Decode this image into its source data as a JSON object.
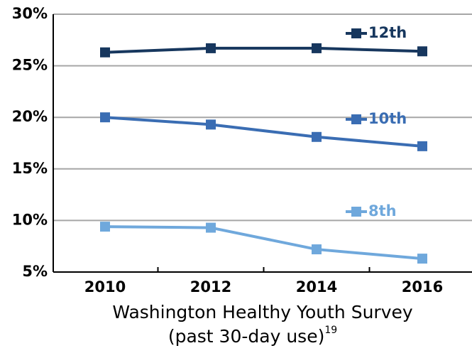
{
  "chart_data": {
    "type": "line",
    "categories": [
      "2010",
      "2012",
      "2014",
      "2016"
    ],
    "series": [
      {
        "name": "12th",
        "color": "#17375e",
        "values": [
          26.3,
          26.7,
          26.7,
          26.4
        ]
      },
      {
        "name": "10th",
        "color": "#3a6db3",
        "values": [
          20.0,
          19.3,
          18.1,
          17.2
        ]
      },
      {
        "name": "8th",
        "color": "#6fa8dc",
        "values": [
          9.4,
          9.3,
          7.2,
          6.3
        ]
      }
    ],
    "ylim": [
      5,
      30
    ],
    "yticks": [
      {
        "value": 5,
        "label": "5%"
      },
      {
        "value": 10,
        "label": "10%"
      },
      {
        "value": 15,
        "label": "15%"
      },
      {
        "value": 20,
        "label": "20%"
      },
      {
        "value": 25,
        "label": "25%"
      },
      {
        "value": 30,
        "label": "30%"
      }
    ],
    "grid": true,
    "xlabel": [
      "Washington Healthy Youth Survey",
      "(past 30-day use)"
    ],
    "xlabel_footnote": "19"
  }
}
